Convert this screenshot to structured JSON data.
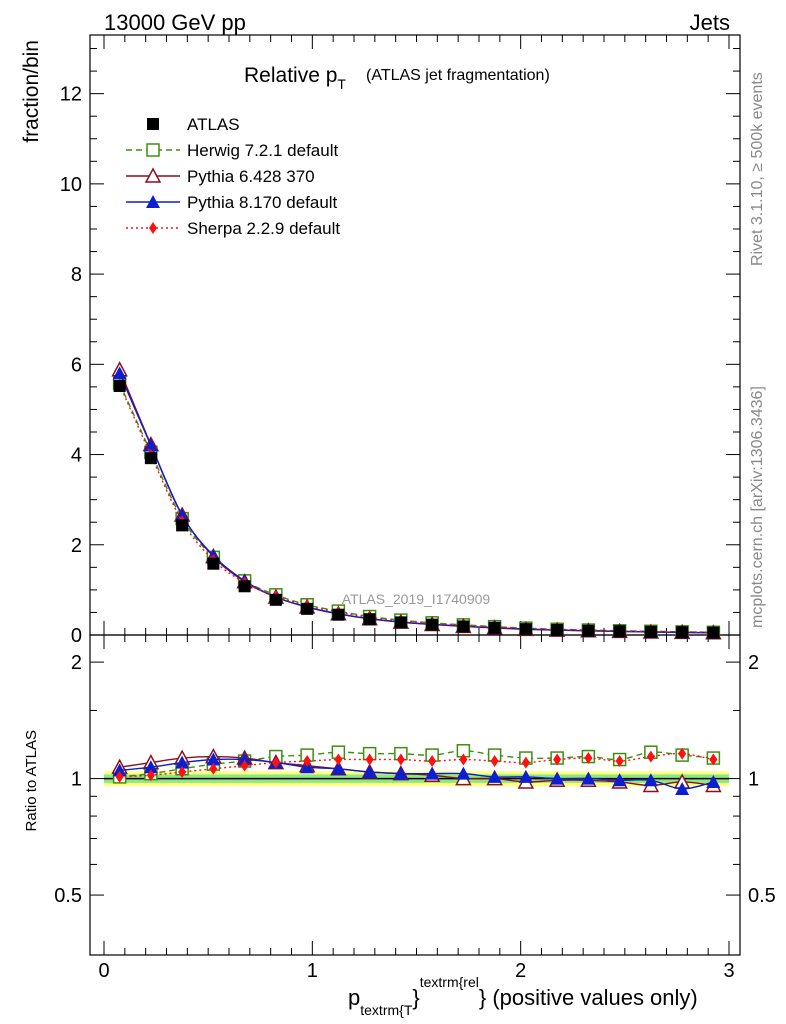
{
  "header": {
    "left": "13000 GeV pp",
    "right": "Jets"
  },
  "title": {
    "main": "Relative p",
    "main_sub": "T",
    "paren": "(ATLAS jet fragmentation)"
  },
  "side_labels": {
    "rivet": "Rivet 3.1.10, ≥ 500k events",
    "mcplots": "mcplots.cern.ch [arXiv:1306.3436]"
  },
  "watermark": "ATLAS_2019_I1740909",
  "axes": {
    "ylabel_main": "fraction/bin",
    "ylabel_ratio": "Ratio to ATLAS",
    "xlabel_p": "p",
    "xlabel_sub": "textrm{T",
    "xlabel_brace": "}",
    "xlabel_sup": "textrm{rel",
    "xlabel_tail": "} (positive values only)",
    "main_ticks": [
      "0",
      "2",
      "4",
      "6",
      "8",
      "10",
      "12"
    ],
    "ratio_ticks": [
      "0.5",
      "1",
      "2"
    ],
    "x_ticks": [
      "0",
      "1",
      "2",
      "3"
    ]
  },
  "legend": [
    {
      "label": "ATLAS",
      "color": "#000000",
      "marker": "filled-square",
      "line": "none"
    },
    {
      "label": "Herwig 7.2.1 default",
      "color": "#3f8f0f",
      "marker": "open-square",
      "line": "dashed"
    },
    {
      "label": "Pythia 6.428 370",
      "color": "#8b0f1f",
      "marker": "open-triangle",
      "line": "solid"
    },
    {
      "label": "Pythia 8.170 default",
      "color": "#0b1fcf",
      "marker": "filled-triangle",
      "line": "solid"
    },
    {
      "label": "Sherpa 2.2.9 default",
      "color": "#ff0f0f",
      "marker": "filled-diamond",
      "line": "dotted"
    }
  ],
  "chart_data": {
    "type": "line",
    "title": "Relative pT (ATLAS jet fragmentation)",
    "xlabel": "p_T^rel (positive values only)",
    "ylabel": "fraction/bin",
    "xlim": [
      -0.07,
      3.03
    ],
    "ylim": [
      0,
      13.3
    ],
    "ratio_ylim": [
      0.35,
      2.35
    ],
    "x": [
      0.075,
      0.225,
      0.375,
      0.525,
      0.675,
      0.825,
      0.975,
      1.125,
      1.275,
      1.425,
      1.575,
      1.725,
      1.875,
      2.025,
      2.175,
      2.325,
      2.475,
      2.625,
      2.775,
      2.925
    ],
    "series": [
      {
        "name": "ATLAS",
        "color": "#000000",
        "values": [
          5.52,
          3.92,
          2.43,
          1.58,
          1.08,
          0.78,
          0.58,
          0.45,
          0.35,
          0.28,
          0.23,
          0.19,
          0.16,
          0.13,
          0.11,
          0.095,
          0.082,
          0.07,
          0.061,
          0.052
        ],
        "ratio": [
          1.0,
          1.0,
          1.0,
          1.0,
          1.0,
          1.0,
          1.0,
          1.0,
          1.0,
          1.0,
          1.0,
          1.0,
          1.0,
          1.0,
          1.0,
          1.0,
          1.0,
          1.0,
          1.0,
          1.0
        ]
      },
      {
        "name": "Herwig 7.2.1 default",
        "color": "#3f8f0f",
        "values": [
          5.58,
          4.05,
          2.58,
          1.72,
          1.2,
          0.89,
          0.67,
          0.53,
          0.41,
          0.33,
          0.27,
          0.225,
          0.186,
          0.151,
          0.127,
          0.11,
          0.093,
          0.082,
          0.07,
          0.06
        ],
        "ratio": [
          1.01,
          1.03,
          1.06,
          1.09,
          1.11,
          1.14,
          1.15,
          1.17,
          1.16,
          1.16,
          1.15,
          1.18,
          1.15,
          1.13,
          1.13,
          1.14,
          1.12,
          1.17,
          1.15,
          1.13
        ]
      },
      {
        "name": "Pythia 6.428 370",
        "color": "#8b0f1f",
        "values": [
          5.88,
          4.22,
          2.66,
          1.74,
          1.18,
          0.84,
          0.62,
          0.47,
          0.36,
          0.285,
          0.233,
          0.19,
          0.158,
          0.126,
          0.108,
          0.093,
          0.08,
          0.066,
          0.058,
          0.049
        ],
        "ratio": [
          1.07,
          1.1,
          1.13,
          1.14,
          1.13,
          1.1,
          1.08,
          1.06,
          1.04,
          1.03,
          1.02,
          1.0,
          1.0,
          0.98,
          0.99,
          0.99,
          0.98,
          0.96,
          0.98,
          0.96
        ]
      },
      {
        "name": "Pythia 8.170 default",
        "color": "#0b1fcf",
        "values": [
          5.8,
          4.2,
          2.65,
          1.76,
          1.2,
          0.84,
          0.62,
          0.47,
          0.36,
          0.29,
          0.236,
          0.195,
          0.16,
          0.13,
          0.11,
          0.095,
          0.081,
          0.07,
          0.057,
          0.051
        ],
        "ratio": [
          1.05,
          1.07,
          1.1,
          1.12,
          1.12,
          1.1,
          1.07,
          1.06,
          1.04,
          1.03,
          1.03,
          1.03,
          1.01,
          1.01,
          1.0,
          1.0,
          0.99,
          0.99,
          0.94,
          0.98
        ]
      },
      {
        "name": "Sherpa 2.2.9 default",
        "color": "#ff0f0f",
        "values": [
          5.55,
          3.99,
          2.52,
          1.66,
          1.16,
          0.86,
          0.65,
          0.51,
          0.39,
          0.31,
          0.255,
          0.21,
          0.177,
          0.145,
          0.123,
          0.107,
          0.09,
          0.081,
          0.071,
          0.059
        ],
        "ratio": [
          1.01,
          1.02,
          1.04,
          1.06,
          1.08,
          1.1,
          1.11,
          1.12,
          1.12,
          1.12,
          1.11,
          1.12,
          1.11,
          1.1,
          1.12,
          1.13,
          1.11,
          1.14,
          1.16,
          1.12
        ]
      }
    ],
    "ratio_band": {
      "green_halfwidth": 0.025,
      "yellow_halfwidth": 0.045
    }
  }
}
